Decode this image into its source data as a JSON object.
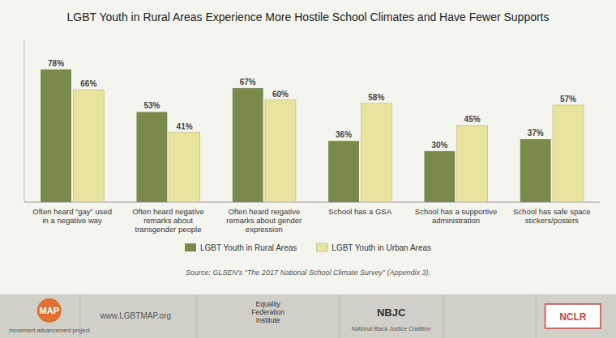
{
  "chart_data": {
    "type": "bar",
    "title": "LGBT Youth in Rural Areas Experience More Hostile School Climates and Have Fewer Supports",
    "categories": [
      "Often heard “gay” used\nin a negative way",
      "Often heard negative\nremarks about\ntransgender people",
      "Often heard negative\nremarks about gender\nexpression",
      "School has a GSA",
      "School has a supportive\nadministration",
      "School has safe space\nstickers/posters"
    ],
    "series": [
      {
        "name": "LGBT Youth in Rural Areas",
        "color": "#7a8a4a",
        "values": [
          78,
          53,
          67,
          36,
          30,
          37
        ],
        "value_labels": [
          "78%",
          "53%",
          "67%",
          "36%",
          "30%",
          "37%"
        ]
      },
      {
        "name": "LGBT Youth in Urban Areas",
        "color": "#e8e4a0",
        "values": [
          66,
          41,
          60,
          58,
          45,
          57
        ],
        "value_labels": [
          "66%",
          "41%",
          "60%",
          "58%",
          "45%",
          "57%"
        ]
      }
    ],
    "ylim": [
      0,
      95
    ],
    "grid": false,
    "tick_labels": false,
    "data_labels": true,
    "legend": "bottom",
    "annotations": [
      "Source: GLSEN’s “The 2017 National School Climate Survey” (Appendix 3).",
      "MAP",
      "movement advancement project",
      "www.LGBTMAP.org",
      "Equality\nFederation\nInstitute",
      "NBJC",
      "National Black Justice Coalition",
      "NCLR"
    ]
  }
}
